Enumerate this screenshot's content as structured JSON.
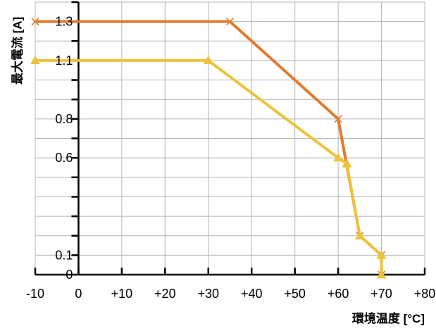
{
  "chart_data": {
    "type": "line",
    "title": "",
    "xlabel": "環境温度 [°C]",
    "ylabel": "最大電流 [A]",
    "xlim": [
      -10,
      80
    ],
    "ylim": [
      0,
      1.4
    ],
    "x_ticks": [
      -10,
      0,
      10,
      20,
      30,
      40,
      50,
      60,
      70,
      80
    ],
    "x_tick_labels": [
      "-10",
      "0",
      "+10",
      "+20",
      "+30",
      "+40",
      "+50",
      "+60",
      "+70",
      "+80"
    ],
    "y_ticks": [
      0,
      0.1,
      0.6,
      0.8,
      1.1,
      1.3
    ],
    "y_tick_labels": [
      "0",
      "0.1",
      "0.6",
      "0.8",
      "1.1",
      "1.3"
    ],
    "y_gridlines": [
      0.1,
      0.2,
      0.3,
      0.4,
      0.5,
      0.6,
      0.7,
      0.8,
      0.9,
      1.0,
      1.1,
      1.2,
      1.3,
      1.4
    ],
    "grid": true,
    "legend": "none",
    "series": [
      {
        "color": "#e07b30",
        "marker": "x",
        "x": [
          -10,
          35,
          60,
          65,
          70,
          70
        ],
        "y": [
          1.3,
          1.3,
          0.8,
          0.2,
          0.1,
          0
        ]
      },
      {
        "color": "#eec23c",
        "marker": "triangle",
        "x": [
          -10,
          30,
          60,
          62,
          65,
          70,
          70
        ],
        "y": [
          1.1,
          1.1,
          0.6,
          0.57,
          0.2,
          0.1,
          0
        ]
      }
    ]
  }
}
